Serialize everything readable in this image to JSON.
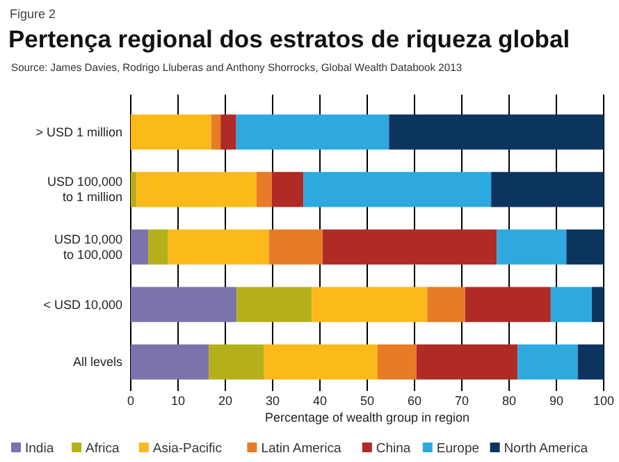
{
  "chart_data": {
    "type": "bar",
    "orientation": "horizontal",
    "stacked": true,
    "title": "Pertença regional dos estratos de riqueza global",
    "subtitle": "Source: James Davies, Rodrigo Lluberas and Anthony Shorrocks, Global Wealth Databook 2013",
    "annotations": [
      "Figure 2"
    ],
    "xlabel": "Percentage of wealth group in region",
    "categories": [
      "> USD 1 million",
      "USD 100,000 to 1 million",
      "USD 10,000 to 100,000",
      "< USD 10,000",
      "All levels"
    ],
    "series": [
      {
        "name": "India",
        "color": "#7b73ac",
        "values": [
          0,
          0,
          3.7,
          22.4,
          16.5
        ]
      },
      {
        "name": "Africa",
        "color": "#b5b01a",
        "values": [
          0,
          1.2,
          4.2,
          15.9,
          11.7
        ]
      },
      {
        "name": "Asia-Pacific",
        "color": "#fbb91a",
        "values": [
          17,
          25.4,
          21.3,
          24.4,
          24
        ]
      },
      {
        "name": "Latin America",
        "color": "#e87b25",
        "values": [
          2,
          3.2,
          11.4,
          8,
          8.2
        ]
      },
      {
        "name": "China",
        "color": "#b02a26",
        "values": [
          3.3,
          6.7,
          36.8,
          18.1,
          21.4
        ]
      },
      {
        "name": "Europe",
        "color": "#2ea9e0",
        "values": [
          32.3,
          39.7,
          14.7,
          8.7,
          12.7
        ]
      },
      {
        "name": "North America",
        "color": "#0b355f",
        "values": [
          45.4,
          23.8,
          7.9,
          2.5,
          5.5
        ]
      }
    ],
    "xlim": [
      0,
      100
    ],
    "xticks": [
      0,
      10,
      20,
      30,
      40,
      50,
      60,
      70,
      80,
      90,
      100
    ],
    "grid": "x",
    "legend": "bottom"
  }
}
